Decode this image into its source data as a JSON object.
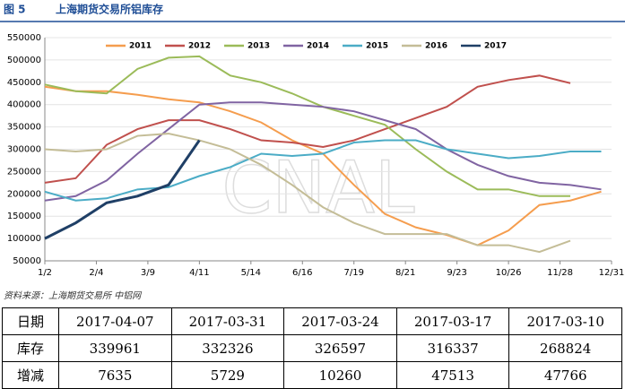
{
  "header": {
    "label": "图 5"
  },
  "chart_data": {
    "type": "line",
    "title": "上海期货交易所铝库存",
    "watermark": "CNAL",
    "x": [
      0,
      3,
      6,
      9,
      12,
      15,
      18,
      21,
      24,
      27,
      30,
      33,
      36,
      39,
      42,
      45,
      48,
      51,
      54
    ],
    "xlim": [
      0,
      55
    ],
    "xticks": [
      {
        "value": 0,
        "label": "1/2"
      },
      {
        "value": 5,
        "label": "2/4"
      },
      {
        "value": 10,
        "label": "3/9"
      },
      {
        "value": 15,
        "label": "4/11"
      },
      {
        "value": 20,
        "label": "5/14"
      },
      {
        "value": 25,
        "label": "6/16"
      },
      {
        "value": 30,
        "label": "7/19"
      },
      {
        "value": 35,
        "label": "8/21"
      },
      {
        "value": 40,
        "label": "9/23"
      },
      {
        "value": 45,
        "label": "10/26"
      },
      {
        "value": 50,
        "label": "11/28"
      },
      {
        "value": 55,
        "label": "12/31"
      }
    ],
    "ylim": [
      50000,
      550000
    ],
    "yticks": [
      50000,
      100000,
      150000,
      200000,
      250000,
      300000,
      350000,
      400000,
      450000,
      500000,
      550000
    ],
    "grid": true,
    "series": [
      {
        "name": "2011",
        "color": "#f59d4e",
        "values": [
          440000,
          430000,
          430000,
          422000,
          412000,
          405000,
          385000,
          360000,
          320000,
          290000,
          220000,
          155000,
          125000,
          108000,
          85000,
          118000,
          175000,
          185000,
          205000
        ]
      },
      {
        "name": "2012",
        "color": "#c0504d",
        "values": [
          225000,
          235000,
          310000,
          345000,
          365000,
          365000,
          345000,
          320000,
          315000,
          305000,
          320000,
          345000,
          370000,
          395000,
          440000,
          455000,
          465000,
          448000,
          null
        ]
      },
      {
        "name": "2013",
        "color": "#9bbb59",
        "values": [
          445000,
          430000,
          425000,
          480000,
          505000,
          508000,
          465000,
          450000,
          425000,
          395000,
          375000,
          355000,
          300000,
          250000,
          210000,
          210000,
          195000,
          195000,
          null
        ]
      },
      {
        "name": "2014",
        "color": "#8064a2",
        "values": [
          185000,
          195000,
          230000,
          290000,
          345000,
          400000,
          405000,
          405000,
          400000,
          395000,
          385000,
          365000,
          345000,
          300000,
          265000,
          240000,
          225000,
          220000,
          210000
        ]
      },
      {
        "name": "2015",
        "color": "#4bacc6",
        "values": [
          205000,
          185000,
          190000,
          210000,
          215000,
          240000,
          260000,
          290000,
          285000,
          290000,
          315000,
          320000,
          320000,
          300000,
          290000,
          280000,
          285000,
          295000,
          295000
        ]
      },
      {
        "name": "2016",
        "color": "#c4bd97",
        "values": [
          300000,
          295000,
          300000,
          330000,
          335000,
          320000,
          300000,
          265000,
          220000,
          170000,
          135000,
          110000,
          110000,
          110000,
          85000,
          85000,
          70000,
          95000,
          null
        ]
      },
      {
        "name": "2017",
        "color": "#1f3f66",
        "values": [
          100000,
          135000,
          180000,
          195000,
          220000,
          320000,
          null,
          null,
          null,
          null,
          null,
          null,
          null,
          null,
          null,
          null,
          null,
          null,
          null
        ]
      }
    ]
  },
  "source": "资料来源：上海期货交易所  中铝网",
  "table": {
    "rows": [
      [
        "日期",
        "2017-04-07",
        "2017-03-31",
        "2017-03-24",
        "2017-03-17",
        "2017-03-10"
      ],
      [
        "库存",
        "339961",
        "332326",
        "326597",
        "316337",
        "268824"
      ],
      [
        "增减",
        "7635",
        "5729",
        "10260",
        "47513",
        "47766"
      ]
    ]
  }
}
